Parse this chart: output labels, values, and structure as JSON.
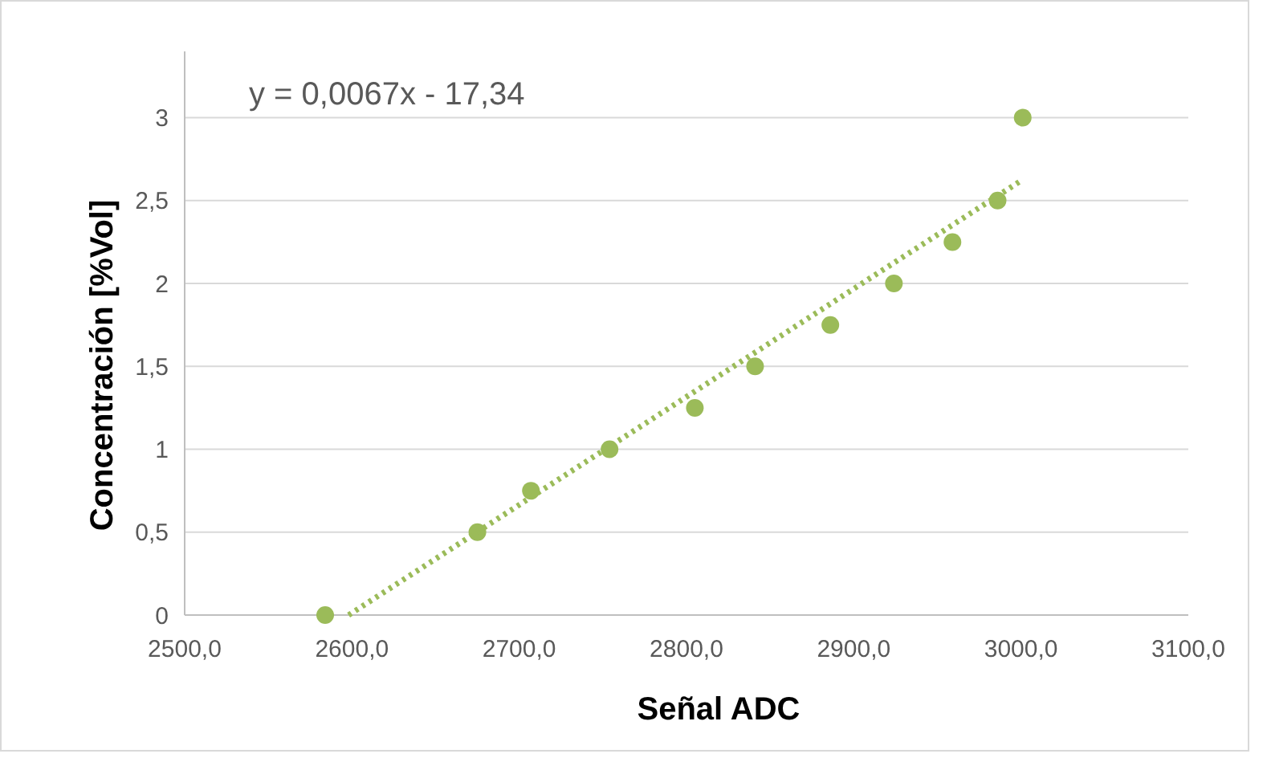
{
  "chart_data": {
    "type": "scatter",
    "xlabel": "Señal ADC",
    "ylabel": "Concentración [%Vol]",
    "xlim": [
      2500,
      3100
    ],
    "xticks": [
      {
        "value": 2500,
        "label": "2500,0"
      },
      {
        "value": 2600,
        "label": "2600,0"
      },
      {
        "value": 2700,
        "label": "2700,0"
      },
      {
        "value": 2800,
        "label": "2800,0"
      },
      {
        "value": 2900,
        "label": "2900,0"
      },
      {
        "value": 3000,
        "label": "3000,0"
      },
      {
        "value": 3100,
        "label": "3100,0"
      }
    ],
    "ylim": [
      0,
      3.4
    ],
    "yticks": [
      0,
      {
        "value": 0.5,
        "label": "0,5"
      },
      1,
      {
        "value": 1.5,
        "label": "1,5"
      },
      2,
      {
        "value": 2.5,
        "label": "2,5"
      },
      3
    ],
    "grid": "y",
    "marker": "circle",
    "series": [
      {
        "color": "#9bbb59",
        "x": [
          2584,
          2675,
          2707,
          2754,
          2805,
          2841,
          2886,
          2924,
          2959,
          2986,
          3001
        ],
        "values": [
          0,
          0.5,
          0.75,
          1,
          1.25,
          1.5,
          1.75,
          2,
          2.25,
          2.5,
          3
        ]
      },
      {
        "type": "line",
        "color": "#9bbb59",
        "line_style": "dotted",
        "marker": "none",
        "x": [
          2598,
          3000
        ],
        "values": [
          0,
          2.62
        ]
      }
    ],
    "annotations": [
      "y = 0,0067x - 17,34"
    ]
  }
}
